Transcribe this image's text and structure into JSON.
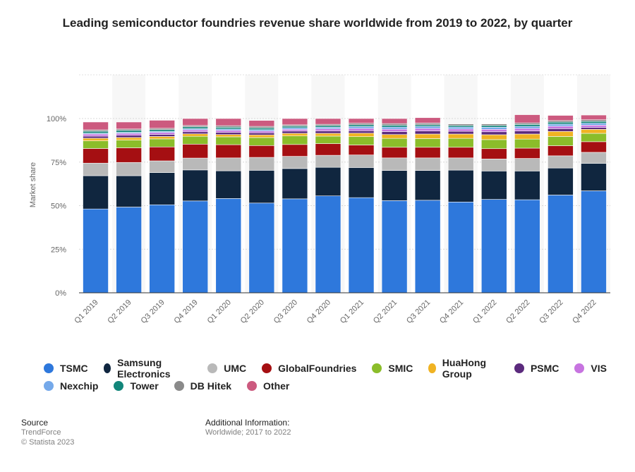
{
  "title": "Leading semiconductor foundries revenue share worldwide from 2019 to 2022, by quarter",
  "footer": {
    "source_header": "Source",
    "source": "TrendForce",
    "copyright": "© Statista 2023",
    "additional_header": "Additional Information:",
    "additional": "Worldwide; 2017 to 2022"
  },
  "chart_data": {
    "type": "bar",
    "stacked": true,
    "title": "Leading semiconductor foundries revenue share worldwide from 2019 to 2022, by quarter",
    "xlabel": "",
    "ylabel": "Market share",
    "ylim": [
      0,
      100
    ],
    "yticks": [
      0,
      25,
      50,
      75,
      100
    ],
    "ytick_labels": [
      "0%",
      "25%",
      "50%",
      "75%",
      "100%"
    ],
    "grid": true,
    "legend_position": "bottom",
    "categories": [
      "Q1 2019",
      "Q2 2019",
      "Q3 2019",
      "Q4 2019",
      "Q1 2020",
      "Q2 2020",
      "Q3 2020",
      "Q4 2020",
      "Q1 2021",
      "Q2 2021",
      "Q3 2021",
      "Q4 2021",
      "Q1 2022",
      "Q2 2022",
      "Q3 2022",
      "Q4 2022"
    ],
    "series": [
      {
        "name": "TSMC",
        "color": "#2e78dc",
        "values": [
          48.1,
          49.2,
          50.5,
          52.7,
          54.1,
          51.5,
          53.9,
          55.6,
          54.6,
          52.9,
          53.1,
          52.1,
          53.6,
          53.4,
          56.1,
          58.5
        ]
      },
      {
        "name": "Samsung Electronics",
        "color": "#10263f",
        "values": [
          19.1,
          18.0,
          18.5,
          17.8,
          15.9,
          18.8,
          17.4,
          16.4,
          17.3,
          17.3,
          17.1,
          18.3,
          16.3,
          16.5,
          15.5,
          15.8
        ]
      },
      {
        "name": "UMC",
        "color": "#b9b9b9",
        "values": [
          7.2,
          7.6,
          6.7,
          6.8,
          7.4,
          7.4,
          7.0,
          6.9,
          7.2,
          7.2,
          7.2,
          7.0,
          6.9,
          7.2,
          7.0,
          6.3
        ]
      },
      {
        "name": "GlobalFoundries",
        "color": "#a50f12",
        "values": [
          8.4,
          8.4,
          8.0,
          8.0,
          7.6,
          6.8,
          6.8,
          6.7,
          5.7,
          6.1,
          6.1,
          6.1,
          5.9,
          5.9,
          5.8,
          6.1
        ]
      },
      {
        "name": "SMIC",
        "color": "#8bbd2a",
        "values": [
          4.4,
          4.4,
          4.6,
          4.5,
          4.5,
          4.6,
          4.9,
          4.3,
          4.8,
          5.1,
          5.0,
          5.1,
          5.2,
          5.2,
          5.3,
          4.8
        ]
      },
      {
        "name": "HuaHong Group",
        "color": "#f0b323",
        "values": [
          1.5,
          1.5,
          1.4,
          1.4,
          1.3,
          1.5,
          1.5,
          1.6,
          2.0,
          2.2,
          2.6,
          2.5,
          2.8,
          2.9,
          2.9,
          2.3
        ]
      },
      {
        "name": "PSMC",
        "color": "#5b2a7d",
        "values": [
          1.2,
          1.3,
          1.2,
          1.2,
          1.3,
          1.2,
          1.3,
          1.4,
          1.4,
          1.7,
          1.8,
          1.6,
          1.7,
          1.8,
          1.6,
          1.1
        ]
      },
      {
        "name": "VIS",
        "color": "#c774e0",
        "values": [
          1.2,
          1.1,
          1.1,
          1.1,
          1.1,
          1.0,
          1.0,
          1.2,
          1.3,
          1.4,
          1.4,
          1.3,
          1.4,
          1.4,
          1.4,
          1.3
        ]
      },
      {
        "name": "Nexchip",
        "color": "#75a9ea",
        "values": [
          0.5,
          0.6,
          0.6,
          0.7,
          0.8,
          0.8,
          0.9,
          0.9,
          1.1,
          1.2,
          1.2,
          1.1,
          1.2,
          1.2,
          1.2,
          1.1
        ]
      },
      {
        "name": "Tower",
        "color": "#12867a",
        "values": [
          1.1,
          1.1,
          1.0,
          1.0,
          1.0,
          1.0,
          0.9,
          0.9,
          1.0,
          1.0,
          0.9,
          0.9,
          1.0,
          1.1,
          1.1,
          1.1
        ]
      },
      {
        "name": "DB Hitek",
        "color": "#8a8a8a",
        "values": [
          0.8,
          0.8,
          0.8,
          0.8,
          0.9,
          0.9,
          0.8,
          0.8,
          0.9,
          1.0,
          1.0,
          0.9,
          0.9,
          0.9,
          0.9,
          0.9
        ]
      },
      {
        "name": "Other",
        "color": "#cc5a7f",
        "values": [
          4.5,
          4.0,
          4.6,
          4.0,
          4.1,
          3.4,
          3.6,
          3.3,
          2.7,
          2.9,
          3.1,
          0.0,
          0.0,
          4.7,
          3.0,
          2.7
        ]
      }
    ]
  }
}
